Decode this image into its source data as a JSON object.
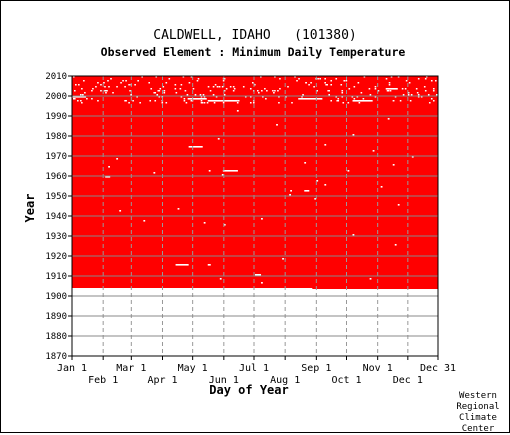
{
  "chart_data": {
    "type": "heatmap",
    "title": "CALDWELL, IDAHO   (101380)",
    "subtitle": "Observed Element : Minimum Daily Temperature",
    "xlabel": "Day of Year",
    "ylabel": "Year",
    "x_ticks_top": [
      "Jan 1",
      "Mar 1",
      "May 1",
      "Jul 1",
      "Sep 1",
      "Nov 1",
      "Dec 31"
    ],
    "x_ticks_top_day": [
      1,
      60,
      121,
      182,
      244,
      305,
      365
    ],
    "x_ticks_bottom": [
      "Feb 1",
      "Apr 1",
      "Jun 1",
      "Aug 1",
      "Oct 1",
      "Dec 1"
    ],
    "x_ticks_bottom_day": [
      32,
      91,
      152,
      213,
      274,
      335
    ],
    "y_ticks": [
      "1870",
      "1880",
      "1890",
      "1900",
      "1910",
      "1920",
      "1930",
      "1940",
      "1950",
      "1960",
      "1970",
      "1980",
      "1990",
      "2000",
      "2010"
    ],
    "ylim": [
      1870,
      2010
    ],
    "xlim": [
      1,
      365
    ],
    "record_start_year": 1904,
    "record_start_day": 1,
    "record_end_year": 2010,
    "record_start_later_day": 240,
    "record_start_later_year": 1903.5,
    "data_color": "#ff0000",
    "missing_color": "#ffffff",
    "missing_spans": [
      {
        "year": 1974,
        "start_day": 117,
        "end_day": 131
      },
      {
        "year": 1962,
        "start_day": 151,
        "end_day": 166
      },
      {
        "year": 1915,
        "start_day": 104,
        "end_day": 117
      },
      {
        "year": 1915,
        "start_day": 136,
        "end_day": 139
      },
      {
        "year": 1910,
        "start_day": 183,
        "end_day": 189
      },
      {
        "year": 1999,
        "start_day": 1,
        "end_day": 15
      },
      {
        "year": 1998,
        "start_day": 116,
        "end_day": 135
      },
      {
        "year": 1997,
        "start_day": 136,
        "end_day": 166
      },
      {
        "year": 1998,
        "start_day": 226,
        "end_day": 250
      },
      {
        "year": 1997,
        "start_day": 280,
        "end_day": 300
      },
      {
        "year": 2003,
        "start_day": 313,
        "end_day": 325
      },
      {
        "year": 1959,
        "start_day": 34,
        "end_day": 39
      },
      {
        "year": 1952,
        "start_day": 232,
        "end_day": 237
      }
    ],
    "missing_points": [
      [
        1968,
        45
      ],
      [
        1964,
        37
      ],
      [
        1942,
        48
      ],
      [
        1937,
        72
      ],
      [
        1962,
        137
      ],
      [
        1960,
        150
      ],
      [
        1966,
        232
      ],
      [
        1955,
        252
      ],
      [
        1957,
        244
      ],
      [
        1948,
        242
      ],
      [
        1950,
        217
      ],
      [
        1935,
        152
      ],
      [
        1938,
        189
      ],
      [
        1980,
        280
      ],
      [
        1972,
        300
      ],
      [
        1962,
        275
      ],
      [
        1954,
        308
      ],
      [
        1965,
        320
      ],
      [
        1945,
        325
      ],
      [
        1930,
        280
      ],
      [
        1925,
        322
      ],
      [
        1918,
        210
      ],
      [
        1908,
        297
      ],
      [
        1908,
        148
      ],
      [
        1906,
        189
      ],
      [
        1985,
        204
      ],
      [
        1978,
        146
      ],
      [
        1969,
        339
      ],
      [
        1952,
        218
      ],
      [
        1936,
        132
      ],
      [
        1943,
        106
      ],
      [
        1961,
        82
      ],
      [
        1988,
        315
      ],
      [
        1992,
        165
      ],
      [
        1975,
        252
      ]
    ],
    "grid": true,
    "credit": [
      "Western",
      "Regional",
      "Climate",
      "Center"
    ]
  }
}
